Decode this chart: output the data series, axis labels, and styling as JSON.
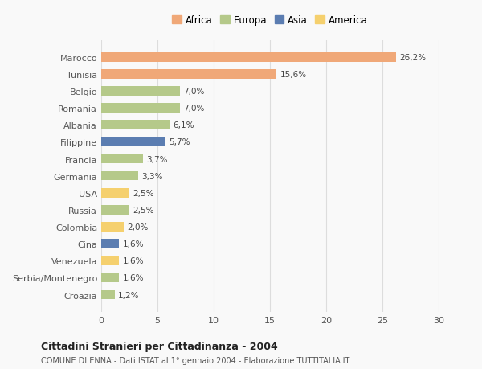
{
  "categories": [
    "Marocco",
    "Tunisia",
    "Belgio",
    "Romania",
    "Albania",
    "Filippine",
    "Francia",
    "Germania",
    "USA",
    "Russia",
    "Colombia",
    "Cina",
    "Venezuela",
    "Serbia/Montenegro",
    "Croazia"
  ],
  "values": [
    26.2,
    15.6,
    7.0,
    7.0,
    6.1,
    5.7,
    3.7,
    3.3,
    2.5,
    2.5,
    2.0,
    1.6,
    1.6,
    1.6,
    1.2
  ],
  "labels": [
    "26,2%",
    "15,6%",
    "7,0%",
    "7,0%",
    "6,1%",
    "5,7%",
    "3,7%",
    "3,3%",
    "2,5%",
    "2,5%",
    "2,0%",
    "1,6%",
    "1,6%",
    "1,6%",
    "1,2%"
  ],
  "continents": [
    "Africa",
    "Africa",
    "Europa",
    "Europa",
    "Europa",
    "Asia",
    "Europa",
    "Europa",
    "America",
    "Europa",
    "America",
    "Asia",
    "America",
    "Europa",
    "Europa"
  ],
  "continent_colors": {
    "Africa": "#F0A878",
    "Europa": "#B5C98A",
    "Asia": "#5B7DB1",
    "America": "#F5D06E"
  },
  "legend_order": [
    "Africa",
    "Europa",
    "Asia",
    "America"
  ],
  "title1": "Cittadini Stranieri per Cittadinanza - 2004",
  "title2": "COMUNE DI ENNA - Dati ISTAT al 1° gennaio 2004 - Elaborazione TUTTITALIA.IT",
  "xlim": [
    0,
    30
  ],
  "xticks": [
    0,
    5,
    10,
    15,
    20,
    25,
    30
  ],
  "background_color": "#f9f9f9",
  "bar_height": 0.55,
  "grid_color": "#dddddd"
}
